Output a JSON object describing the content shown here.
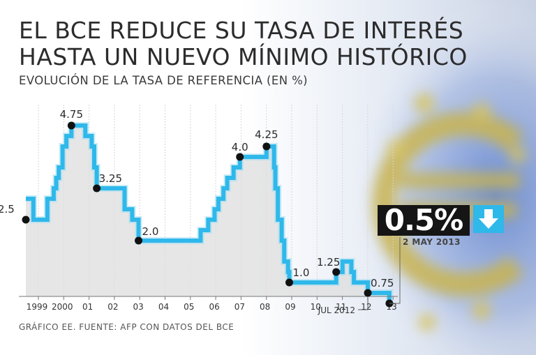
{
  "header": {
    "title_line1": "EL BCE REDUCE SU TASA DE INTERÉS",
    "title_line2": "HASTA UN NUEVO MÍNIMO HISTÓRICO",
    "subtitle": "EVOLUCIÓN DE LA TASA DE REFERENCIA (EN %)"
  },
  "callout": {
    "value": "0.5%",
    "date": "2 MAY 2013",
    "icon": "down-arrow-icon"
  },
  "footer": {
    "source": "GRÁFICO EE. FUENTE: AFP CON DATOS DEL BCE"
  },
  "colors": {
    "line": "#2fb8ea",
    "marker": "#111111",
    "area": "#dedede"
  },
  "chart_data": {
    "type": "line",
    "title": "EL BCE REDUCE SU TASA DE INTERÉS HASTA UN NUEVO MÍNIMO HISTÓRICO",
    "subtitle": "EVOLUCIÓN DE LA TASA DE REFERENCIA (EN %)",
    "xlabel": "",
    "ylabel": "%",
    "xlim": [
      1999,
      2013.5
    ],
    "ylim": [
      0.5,
      5.0
    ],
    "x_tick_labels": [
      "1999",
      "2000",
      "01",
      "02",
      "03",
      "04",
      "05",
      "06",
      "07",
      "08",
      "09",
      "10",
      "11",
      "12",
      "13"
    ],
    "x_tick_years": [
      1999,
      2000,
      2001,
      2002,
      2003,
      2004,
      2005,
      2006,
      2007,
      2008,
      2009,
      2010,
      2011,
      2012,
      2013
    ],
    "series": [
      {
        "name": "Tasa de referencia",
        "points": [
          {
            "x": 1999.0,
            "y": 3.0
          },
          {
            "x": 1999.3,
            "y": 2.5
          },
          {
            "x": 1999.85,
            "y": 3.0
          },
          {
            "x": 2000.1,
            "y": 3.25
          },
          {
            "x": 2000.2,
            "y": 3.5
          },
          {
            "x": 2000.3,
            "y": 3.75
          },
          {
            "x": 2000.45,
            "y": 4.25
          },
          {
            "x": 2000.6,
            "y": 4.5
          },
          {
            "x": 2000.8,
            "y": 4.75
          },
          {
            "x": 2001.35,
            "y": 4.5
          },
          {
            "x": 2001.6,
            "y": 4.25
          },
          {
            "x": 2001.7,
            "y": 3.75
          },
          {
            "x": 2001.8,
            "y": 3.25
          },
          {
            "x": 2002.9,
            "y": 2.75
          },
          {
            "x": 2003.2,
            "y": 2.5
          },
          {
            "x": 2003.45,
            "y": 2.0
          },
          {
            "x": 2005.9,
            "y": 2.25
          },
          {
            "x": 2006.2,
            "y": 2.5
          },
          {
            "x": 2006.45,
            "y": 2.75
          },
          {
            "x": 2006.6,
            "y": 3.0
          },
          {
            "x": 2006.8,
            "y": 3.25
          },
          {
            "x": 2006.95,
            "y": 3.5
          },
          {
            "x": 2007.2,
            "y": 3.75
          },
          {
            "x": 2007.45,
            "y": 4.0
          },
          {
            "x": 2008.5,
            "y": 4.25
          },
          {
            "x": 2008.8,
            "y": 3.75
          },
          {
            "x": 2008.85,
            "y": 3.25
          },
          {
            "x": 2008.95,
            "y": 2.5
          },
          {
            "x": 2009.1,
            "y": 2.0
          },
          {
            "x": 2009.2,
            "y": 1.5
          },
          {
            "x": 2009.35,
            "y": 1.25
          },
          {
            "x": 2009.4,
            "y": 1.0
          },
          {
            "x": 2011.25,
            "y": 1.25
          },
          {
            "x": 2011.5,
            "y": 1.5
          },
          {
            "x": 2011.85,
            "y": 1.25
          },
          {
            "x": 2011.95,
            "y": 1.0
          },
          {
            "x": 2012.5,
            "y": 0.75
          },
          {
            "x": 2013.35,
            "y": 0.5
          }
        ]
      }
    ],
    "annotations": [
      {
        "x": 1999.0,
        "y": 2.5,
        "label": "2.5"
      },
      {
        "x": 2000.8,
        "y": 4.75,
        "label": "4.75"
      },
      {
        "x": 2001.8,
        "y": 3.25,
        "label": "3.25"
      },
      {
        "x": 2003.45,
        "y": 2.0,
        "label": "2.0"
      },
      {
        "x": 2007.45,
        "y": 4.0,
        "label": "4.0"
      },
      {
        "x": 2008.5,
        "y": 4.25,
        "label": "4.25"
      },
      {
        "x": 2009.4,
        "y": 1.0,
        "label": "1.0"
      },
      {
        "x": 2011.25,
        "y": 1.25,
        "label": "1.25"
      },
      {
        "x": 2012.5,
        "y": 0.75,
        "label": "0.75"
      },
      {
        "x": 2013.35,
        "y": 0.5,
        "label": ""
      }
    ],
    "extra_label": {
      "text": "JUL 2012",
      "x": 2012.5,
      "y": 0.75
    },
    "final_value": {
      "x": 2013.35,
      "y": 0.5,
      "label": "0.5%",
      "date": "2 MAY 2013"
    }
  }
}
